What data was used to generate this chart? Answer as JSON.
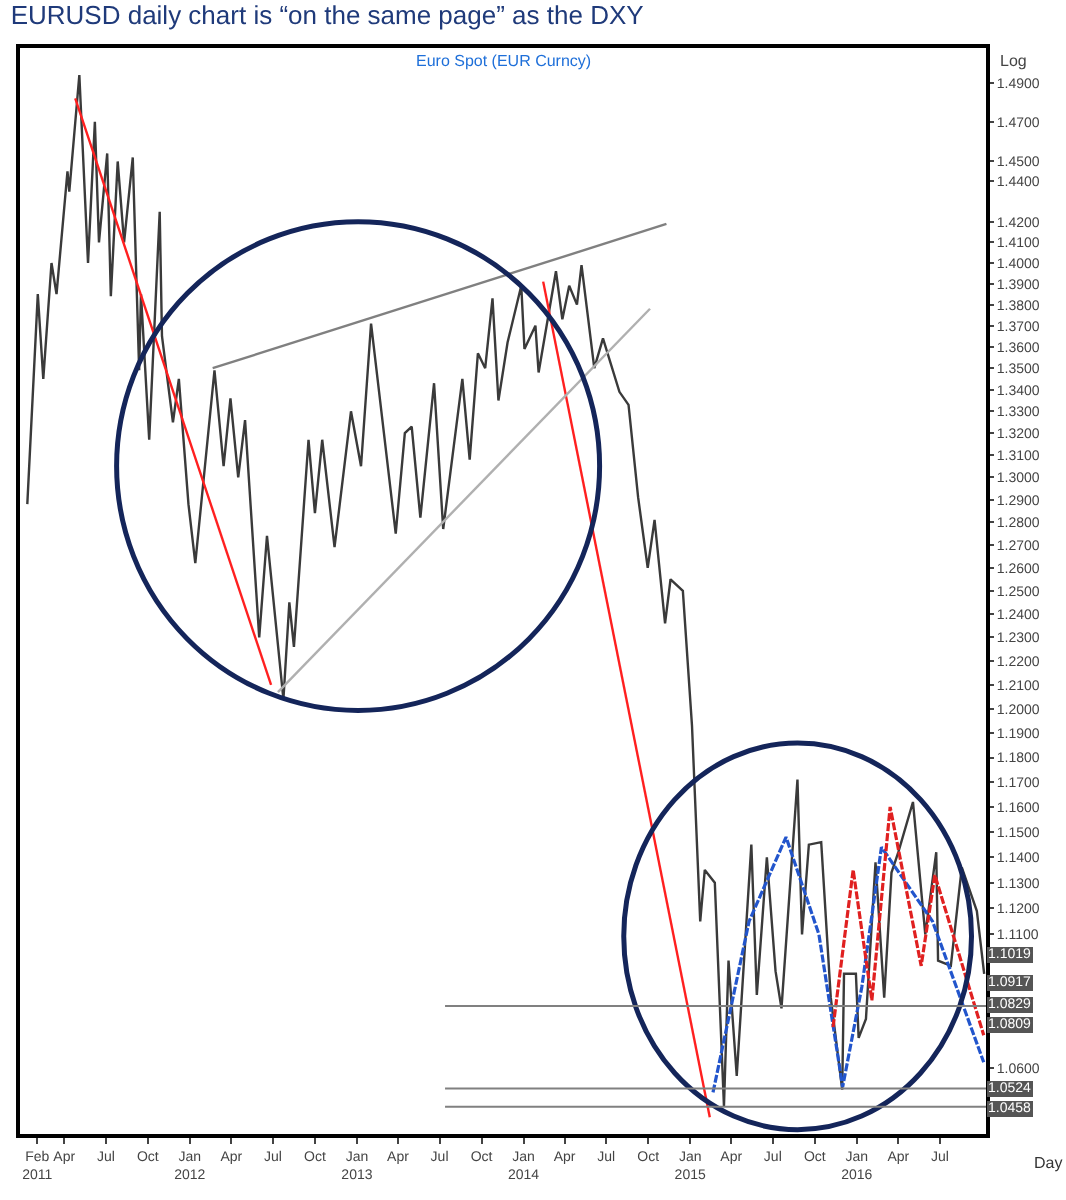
{
  "chart_data": {
    "type": "line",
    "title": "EURUSD daily chart is “on the same page” as the DXY",
    "subtitle": "Euro Spot (EUR Curncy)",
    "ylabel": "Log",
    "log": "y",
    "xlim": [
      "2010-12-25",
      "2016-10-10"
    ],
    "ylim": [
      1.036,
      1.508
    ],
    "xticks": [
      {
        "value": "2011-02-01",
        "label": "Feb\n2011"
      },
      {
        "value": "2011-04-01",
        "label": "Apr"
      },
      {
        "value": "2011-07-01",
        "label": "Jul"
      },
      {
        "value": "2011-10-01",
        "label": "Oct"
      },
      {
        "value": "2012-01-01",
        "label": "Jan\n2012"
      },
      {
        "value": "2012-04-01",
        "label": "Apr"
      },
      {
        "value": "2012-07-01",
        "label": "Jul"
      },
      {
        "value": "2012-10-01",
        "label": "Oct"
      },
      {
        "value": "2013-01-01",
        "label": "Jan\n2013"
      },
      {
        "value": "2013-04-01",
        "label": "Apr"
      },
      {
        "value": "2013-07-01",
        "label": "Jul"
      },
      {
        "value": "2013-10-01",
        "label": "Oct"
      },
      {
        "value": "2014-01-01",
        "label": "Jan\n2014"
      },
      {
        "value": "2014-04-01",
        "label": "Apr"
      },
      {
        "value": "2014-07-01",
        "label": "Jul"
      },
      {
        "value": "2014-10-01",
        "label": "Oct"
      },
      {
        "value": "2015-01-01",
        "label": "Jan\n2015"
      },
      {
        "value": "2015-04-01",
        "label": "Apr"
      },
      {
        "value": "2015-07-01",
        "label": "Jul"
      },
      {
        "value": "2015-10-01",
        "label": "Oct"
      },
      {
        "value": "2016-01-01",
        "label": "Jan\n2016"
      },
      {
        "value": "2016-04-01",
        "label": "Apr"
      },
      {
        "value": "2016-07-01",
        "label": "Jul"
      }
    ],
    "yticks": [
      {
        "value": 1.49,
        "label": "1.4900"
      },
      {
        "value": 1.47,
        "label": "1.4700"
      },
      {
        "value": 1.45,
        "label": "1.4500"
      },
      {
        "value": 1.44,
        "label": "1.4400"
      },
      {
        "value": 1.42,
        "label": "1.4200"
      },
      {
        "value": 1.41,
        "label": "1.4100"
      },
      {
        "value": 1.4,
        "label": "1.4000"
      },
      {
        "value": 1.39,
        "label": "1.3900"
      },
      {
        "value": 1.38,
        "label": "1.3800"
      },
      {
        "value": 1.37,
        "label": "1.3700"
      },
      {
        "value": 1.36,
        "label": "1.3600"
      },
      {
        "value": 1.35,
        "label": "1.3500"
      },
      {
        "value": 1.34,
        "label": "1.3400"
      },
      {
        "value": 1.33,
        "label": "1.3300"
      },
      {
        "value": 1.32,
        "label": "1.3200"
      },
      {
        "value": 1.31,
        "label": "1.3100"
      },
      {
        "value": 1.3,
        "label": "1.3000"
      },
      {
        "value": 1.29,
        "label": "1.2900"
      },
      {
        "value": 1.28,
        "label": "1.2800"
      },
      {
        "value": 1.27,
        "label": "1.2700"
      },
      {
        "value": 1.26,
        "label": "1.2600"
      },
      {
        "value": 1.25,
        "label": "1.2500"
      },
      {
        "value": 1.24,
        "label": "1.2400"
      },
      {
        "value": 1.23,
        "label": "1.2300"
      },
      {
        "value": 1.22,
        "label": "1.2200"
      },
      {
        "value": 1.21,
        "label": "1.2100"
      },
      {
        "value": 1.2,
        "label": "1.2000"
      },
      {
        "value": 1.19,
        "label": "1.1900"
      },
      {
        "value": 1.18,
        "label": "1.1800"
      },
      {
        "value": 1.17,
        "label": "1.1700"
      },
      {
        "value": 1.16,
        "label": "1.1600"
      },
      {
        "value": 1.15,
        "label": "1.1500"
      },
      {
        "value": 1.14,
        "label": "1.1400"
      },
      {
        "value": 1.13,
        "label": "1.1300"
      },
      {
        "value": 1.12,
        "label": "1.1200"
      },
      {
        "value": 1.11,
        "label": "1.1100"
      },
      {
        "value": 1.06,
        "label": "1.0600"
      }
    ],
    "series": [
      {
        "color": "#3a3a3a",
        "line_style": "solid",
        "x": [
          "2011-01-10",
          "2011-02-02",
          "2011-02-14",
          "2011-03-04",
          "2011-03-15",
          "2011-04-08",
          "2011-04-12",
          "2011-05-04",
          "2011-05-23",
          "2011-06-07",
          "2011-06-16",
          "2011-07-04",
          "2011-07-12",
          "2011-07-27",
          "2011-08-10",
          "2011-08-29",
          "2011-09-12",
          "2011-09-16",
          "2011-10-04",
          "2011-10-27",
          "2011-11-01",
          "2011-11-25",
          "2011-12-08",
          "2011-12-29",
          "2012-01-13",
          "2012-02-24",
          "2012-03-15",
          "2012-03-30",
          "2012-04-16",
          "2012-05-01",
          "2012-06-01",
          "2012-06-18",
          "2012-07-24",
          "2012-08-06",
          "2012-08-16",
          "2012-09-17",
          "2012-10-01",
          "2012-10-17",
          "2012-11-13",
          "2012-12-19",
          "2013-01-10",
          "2013-02-01",
          "2013-03-27",
          "2013-04-16",
          "2013-05-01",
          "2013-05-20",
          "2013-06-19",
          "2013-07-09",
          "2013-08-20",
          "2013-09-05",
          "2013-09-23",
          "2013-10-09",
          "2013-10-25",
          "2013-11-07",
          "2013-11-27",
          "2013-12-27",
          "2014-01-03",
          "2014-01-27",
          "2014-02-03",
          "2014-03-13",
          "2014-03-27",
          "2014-04-11",
          "2014-04-28",
          "2014-05-08",
          "2014-06-05",
          "2014-06-24",
          "2014-07-30",
          "2014-08-19",
          "2014-09-09",
          "2014-09-30",
          "2014-10-15",
          "2014-11-07",
          "2014-11-19",
          "2014-12-16",
          "2015-01-05",
          "2015-01-23",
          "2015-02-02",
          "2015-02-24",
          "2015-03-16",
          "2015-03-26",
          "2015-04-13",
          "2015-05-15",
          "2015-05-27",
          "2015-06-18",
          "2015-07-07",
          "2015-07-20",
          "2015-08-24",
          "2015-09-03",
          "2015-09-18",
          "2015-10-15",
          "2015-11-05",
          "2015-11-30",
          "2015-12-04",
          "2015-12-30",
          "2016-01-05",
          "2016-01-21",
          "2016-02-11",
          "2016-03-01",
          "2016-03-17",
          "2016-04-01",
          "2016-05-03",
          "2016-05-30",
          "2016-06-23",
          "2016-06-27",
          "2016-07-25",
          "2016-08-18",
          "2016-09-20",
          "2016-10-06"
        ],
        "values": [
          1.288,
          1.385,
          1.345,
          1.4,
          1.385,
          1.445,
          1.435,
          1.494,
          1.4,
          1.47,
          1.41,
          1.454,
          1.384,
          1.45,
          1.41,
          1.452,
          1.349,
          1.385,
          1.317,
          1.425,
          1.365,
          1.325,
          1.345,
          1.288,
          1.262,
          1.349,
          1.305,
          1.336,
          1.3,
          1.326,
          1.23,
          1.274,
          1.204,
          1.245,
          1.226,
          1.317,
          1.284,
          1.317,
          1.269,
          1.33,
          1.305,
          1.371,
          1.275,
          1.32,
          1.323,
          1.282,
          1.343,
          1.277,
          1.345,
          1.308,
          1.357,
          1.35,
          1.383,
          1.335,
          1.362,
          1.389,
          1.359,
          1.37,
          1.348,
          1.396,
          1.373,
          1.389,
          1.38,
          1.399,
          1.35,
          1.364,
          1.339,
          1.333,
          1.291,
          1.26,
          1.281,
          1.236,
          1.255,
          1.25,
          1.193,
          1.115,
          1.135,
          1.13,
          1.046,
          1.1,
          1.057,
          1.145,
          1.087,
          1.14,
          1.096,
          1.082,
          1.171,
          1.11,
          1.145,
          1.146,
          1.086,
          1.052,
          1.095,
          1.095,
          1.071,
          1.078,
          1.138,
          1.086,
          1.134,
          1.142,
          1.162,
          1.11,
          1.142,
          1.1,
          1.098,
          1.136,
          1.119,
          1.095
        ]
      },
      {
        "color": "#ff2020",
        "line_style": "solid",
        "x": [
          "2011-04-25",
          "2012-06-27"
        ],
        "values": [
          1.482,
          1.21
        ]
      },
      {
        "color": "#ff2020",
        "line_style": "solid",
        "x": [
          "2014-02-13",
          "2015-02-13"
        ],
        "values": [
          1.391,
          1.042
        ]
      },
      {
        "color": "#808080",
        "line_style": "solid",
        "x": [
          "2012-02-20",
          "2014-11-10"
        ],
        "values": [
          1.35,
          1.419
        ]
      },
      {
        "color": "#b0b0b0",
        "line_style": "solid",
        "x": [
          "2012-07-12",
          "2014-10-05"
        ],
        "values": [
          1.207,
          1.378
        ]
      },
      {
        "color": "#2255cc",
        "line_style": "dashed",
        "x": [
          "2015-02-20",
          "2015-05-10",
          "2015-07-30",
          "2015-10-10",
          "2015-12-01",
          "2016-01-12",
          "2016-02-24",
          "2016-06-15",
          "2016-10-05"
        ],
        "values": [
          1.051,
          1.115,
          1.148,
          1.11,
          1.053,
          1.09,
          1.144,
          1.115,
          1.062
        ]
      },
      {
        "color": "#e02020",
        "line_style": "dashed",
        "x": [
          "2015-11-10",
          "2015-12-24",
          "2016-02-03",
          "2016-03-14",
          "2016-05-21",
          "2016-06-20",
          "2016-10-05"
        ],
        "values": [
          1.075,
          1.135,
          1.085,
          1.16,
          1.098,
          1.133,
          1.072
        ]
      }
    ],
    "ref_lines": [
      {
        "axis": "y",
        "value": 1.0829,
        "label": "1.0829",
        "color": "#808080"
      },
      {
        "axis": "y",
        "value": 1.0524,
        "label": "1.0524",
        "color": "#808080"
      },
      {
        "axis": "y",
        "value": 1.0458,
        "label": "1.0458",
        "color": "#808080"
      }
    ],
    "annotations": [
      {
        "text": "1.1019",
        "x": "2016-10-10",
        "y": 1.1019
      },
      {
        "text": "1.0917",
        "x": "2016-10-10",
        "y": 1.0917
      },
      {
        "text": "1.0809",
        "x": "2016-10-10",
        "y": 1.0809
      },
      "Day"
    ]
  }
}
